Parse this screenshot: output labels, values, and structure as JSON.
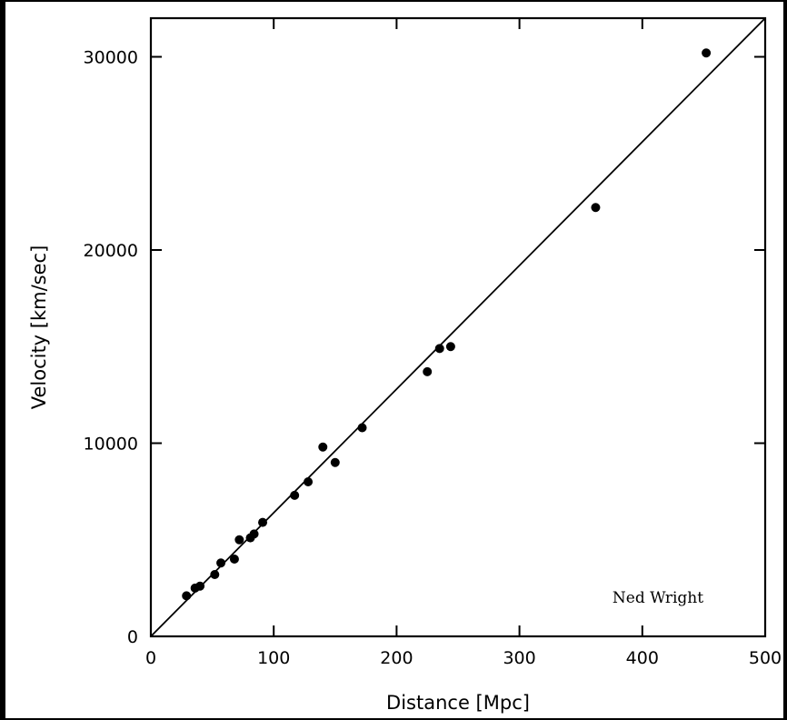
{
  "chart_data": {
    "type": "scatter",
    "xlabel": "Distance [Mpc]",
    "ylabel": "Velocity [km/sec]",
    "xlim": [
      0,
      500
    ],
    "ylim": [
      0,
      32000
    ],
    "x_ticks": [
      0,
      100,
      200,
      300,
      400,
      500
    ],
    "y_ticks": [
      0,
      10000,
      20000,
      30000
    ],
    "x_tick_labels": [
      "0",
      "100",
      "200",
      "300",
      "400",
      "500"
    ],
    "y_tick_labels": [
      "0",
      "10000",
      "20000",
      "30000"
    ],
    "grid": false,
    "legend": "none",
    "credit": "Ned Wright",
    "points": [
      {
        "x": 29,
        "y": 2100
      },
      {
        "x": 36,
        "y": 2500
      },
      {
        "x": 40,
        "y": 2600
      },
      {
        "x": 52,
        "y": 3200
      },
      {
        "x": 57,
        "y": 3800
      },
      {
        "x": 68,
        "y": 4000
      },
      {
        "x": 72,
        "y": 5000
      },
      {
        "x": 81,
        "y": 5100
      },
      {
        "x": 84,
        "y": 5300
      },
      {
        "x": 91,
        "y": 5900
      },
      {
        "x": 117,
        "y": 7300
      },
      {
        "x": 128,
        "y": 8000
      },
      {
        "x": 140,
        "y": 9800
      },
      {
        "x": 150,
        "y": 9000
      },
      {
        "x": 172,
        "y": 10800
      },
      {
        "x": 225,
        "y": 13700
      },
      {
        "x": 235,
        "y": 14900
      },
      {
        "x": 244,
        "y": 15000
      },
      {
        "x": 362,
        "y": 22200
      },
      {
        "x": 452,
        "y": 30200
      }
    ],
    "fit_line": {
      "from": [
        0,
        0
      ],
      "to": [
        500,
        32000
      ]
    }
  },
  "colors": {
    "background": "#ffffff",
    "frame": "#000000",
    "ink": "#000000"
  }
}
